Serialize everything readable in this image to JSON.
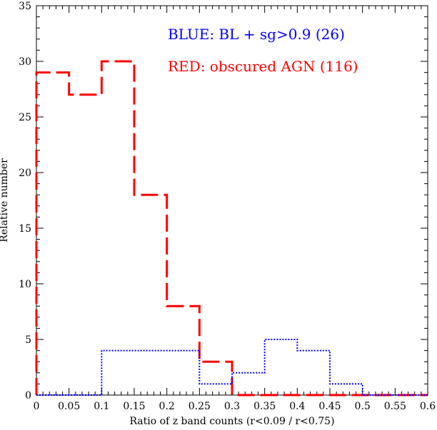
{
  "chart_data": {
    "type": "step-histogram",
    "xlabel": "Ratio of z band counts (r<0.09 / r<0.75)",
    "ylabel": "Relative number",
    "xlim": [
      0,
      0.6
    ],
    "ylim": [
      0,
      35
    ],
    "x_ticks": [
      "0",
      "0.05",
      "0.1",
      "0.15",
      "0.2",
      "0.25",
      "0.3",
      "0.35",
      "0.4",
      "0.45",
      "0.5",
      "0.55",
      "0.6"
    ],
    "x_tick_values": [
      0,
      0.05,
      0.1,
      0.15,
      0.2,
      0.25,
      0.3,
      0.35,
      0.4,
      0.45,
      0.5,
      0.55,
      0.6
    ],
    "y_ticks": [
      "0",
      "5",
      "10",
      "15",
      "20",
      "25",
      "30",
      "35"
    ],
    "y_tick_values": [
      0,
      5,
      10,
      15,
      20,
      25,
      30,
      35
    ],
    "bin_edges": [
      0,
      0.05,
      0.1,
      0.15,
      0.2,
      0.25,
      0.3,
      0.35,
      0.4,
      0.45,
      0.5,
      0.55,
      0.6
    ],
    "series": [
      {
        "name": "RED: obscured AGN (116)",
        "color": "#ff0000",
        "style": "dashed",
        "values": [
          29,
          27,
          30,
          18,
          8,
          3,
          0,
          0,
          0,
          0,
          0,
          0
        ]
      },
      {
        "name": "BLUE: BL + sg>0.9 (26)",
        "color": "#0000ff",
        "style": "dotted",
        "values": [
          0,
          0,
          4,
          4,
          4,
          1,
          2,
          5,
          4,
          1,
          0,
          0
        ]
      }
    ],
    "legend": [
      {
        "text": "BLUE: BL + sg>0.9 (26)",
        "color": "#0000ff"
      },
      {
        "text": "RED: obscured AGN (116)",
        "color": "#ff0000"
      }
    ],
    "legend_position": "top-right"
  }
}
